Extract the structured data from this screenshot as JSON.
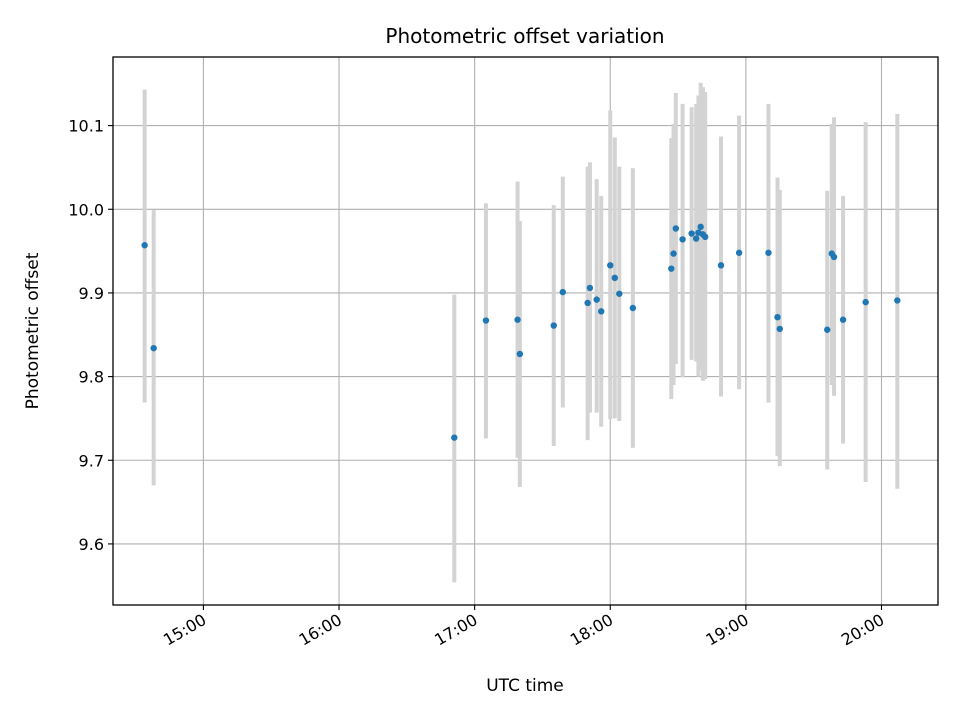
{
  "chart_data": {
    "type": "scatter",
    "title": "Photometric offset variation",
    "xlabel": "UTC time",
    "ylabel": "Photometric offset",
    "x_axis": "time",
    "xlim": [
      "14:20",
      "20:25"
    ],
    "ylim": [
      9.527,
      10.182
    ],
    "x_ticks": [
      "15:00",
      "16:00",
      "17:00",
      "18:00",
      "19:00",
      "20:00"
    ],
    "y_ticks": [
      9.6,
      9.7,
      9.8,
      9.9,
      10.0,
      10.1
    ],
    "y_tick_labels": [
      "9.6",
      "9.7",
      "9.8",
      "9.9",
      "10.0",
      "10.1"
    ],
    "grid": true,
    "legend": "none",
    "colors": {
      "points": "#1f77b4",
      "errorbars": "#d3d3d3",
      "grid": "#b0b0b0",
      "axes": "#000000"
    },
    "points": [
      {
        "x": "14:34",
        "y": 9.957,
        "low": 9.769,
        "high": 10.143
      },
      {
        "x": "14:38",
        "y": 9.834,
        "low": 9.67,
        "high": 9.999
      },
      {
        "x": "16:51",
        "y": 9.727,
        "low": 9.554,
        "high": 9.898
      },
      {
        "x": "17:05",
        "y": 9.867,
        "low": 9.726,
        "high": 10.007
      },
      {
        "x": "17:19",
        "y": 9.868,
        "low": 9.703,
        "high": 10.033
      },
      {
        "x": "17:20",
        "y": 9.827,
        "low": 9.668,
        "high": 9.986
      },
      {
        "x": "17:35",
        "y": 9.861,
        "low": 9.717,
        "high": 10.005
      },
      {
        "x": "17:39",
        "y": 9.901,
        "low": 9.763,
        "high": 10.039
      },
      {
        "x": "17:50",
        "y": 9.888,
        "low": 9.724,
        "high": 10.051
      },
      {
        "x": "17:51",
        "y": 9.906,
        "low": 9.757,
        "high": 10.056
      },
      {
        "x": "17:54",
        "y": 9.892,
        "low": 9.757,
        "high": 10.036
      },
      {
        "x": "17:56",
        "y": 9.878,
        "low": 9.74,
        "high": 10.016
      },
      {
        "x": "18:00",
        "y": 9.933,
        "low": 9.749,
        "high": 10.118
      },
      {
        "x": "18:02",
        "y": 9.918,
        "low": 9.75,
        "high": 10.086
      },
      {
        "x": "18:04",
        "y": 9.899,
        "low": 9.747,
        "high": 10.051
      },
      {
        "x": "18:10",
        "y": 9.882,
        "low": 9.715,
        "high": 10.049
      },
      {
        "x": "18:27",
        "y": 9.929,
        "low": 9.773,
        "high": 10.085
      },
      {
        "x": "18:28",
        "y": 9.947,
        "low": 9.79,
        "high": 10.102
      },
      {
        "x": "18:29",
        "y": 9.977,
        "low": 9.815,
        "high": 10.139
      },
      {
        "x": "18:32",
        "y": 9.964,
        "low": 9.799,
        "high": 10.126
      },
      {
        "x": "18:36",
        "y": 9.971,
        "low": 9.82,
        "high": 10.122
      },
      {
        "x": "18:38",
        "y": 9.965,
        "low": 9.818,
        "high": 10.126
      },
      {
        "x": "18:39",
        "y": 9.972,
        "low": 9.8,
        "high": 10.136
      },
      {
        "x": "18:40",
        "y": 9.979,
        "low": 9.808,
        "high": 10.151
      },
      {
        "x": "18:41",
        "y": 9.97,
        "low": 9.795,
        "high": 10.146
      },
      {
        "x": "18:42",
        "y": 9.967,
        "low": 9.797,
        "high": 10.14
      },
      {
        "x": "18:49",
        "y": 9.933,
        "low": 9.776,
        "high": 10.087
      },
      {
        "x": "18:57",
        "y": 9.948,
        "low": 9.785,
        "high": 10.112
      },
      {
        "x": "19:10",
        "y": 9.948,
        "low": 9.769,
        "high": 10.126
      },
      {
        "x": "19:14",
        "y": 9.871,
        "low": 9.705,
        "high": 10.038
      },
      {
        "x": "19:15",
        "y": 9.857,
        "low": 9.693,
        "high": 10.023
      },
      {
        "x": "19:36",
        "y": 9.856,
        "low": 9.689,
        "high": 10.022
      },
      {
        "x": "19:38",
        "y": 9.947,
        "low": 9.79,
        "high": 10.102
      },
      {
        "x": "19:39",
        "y": 9.943,
        "low": 9.777,
        "high": 10.11
      },
      {
        "x": "19:43",
        "y": 9.868,
        "low": 9.72,
        "high": 10.016
      },
      {
        "x": "19:53",
        "y": 9.889,
        "low": 9.674,
        "high": 10.104
      },
      {
        "x": "20:07",
        "y": 9.891,
        "low": 9.666,
        "high": 10.114
      }
    ]
  }
}
